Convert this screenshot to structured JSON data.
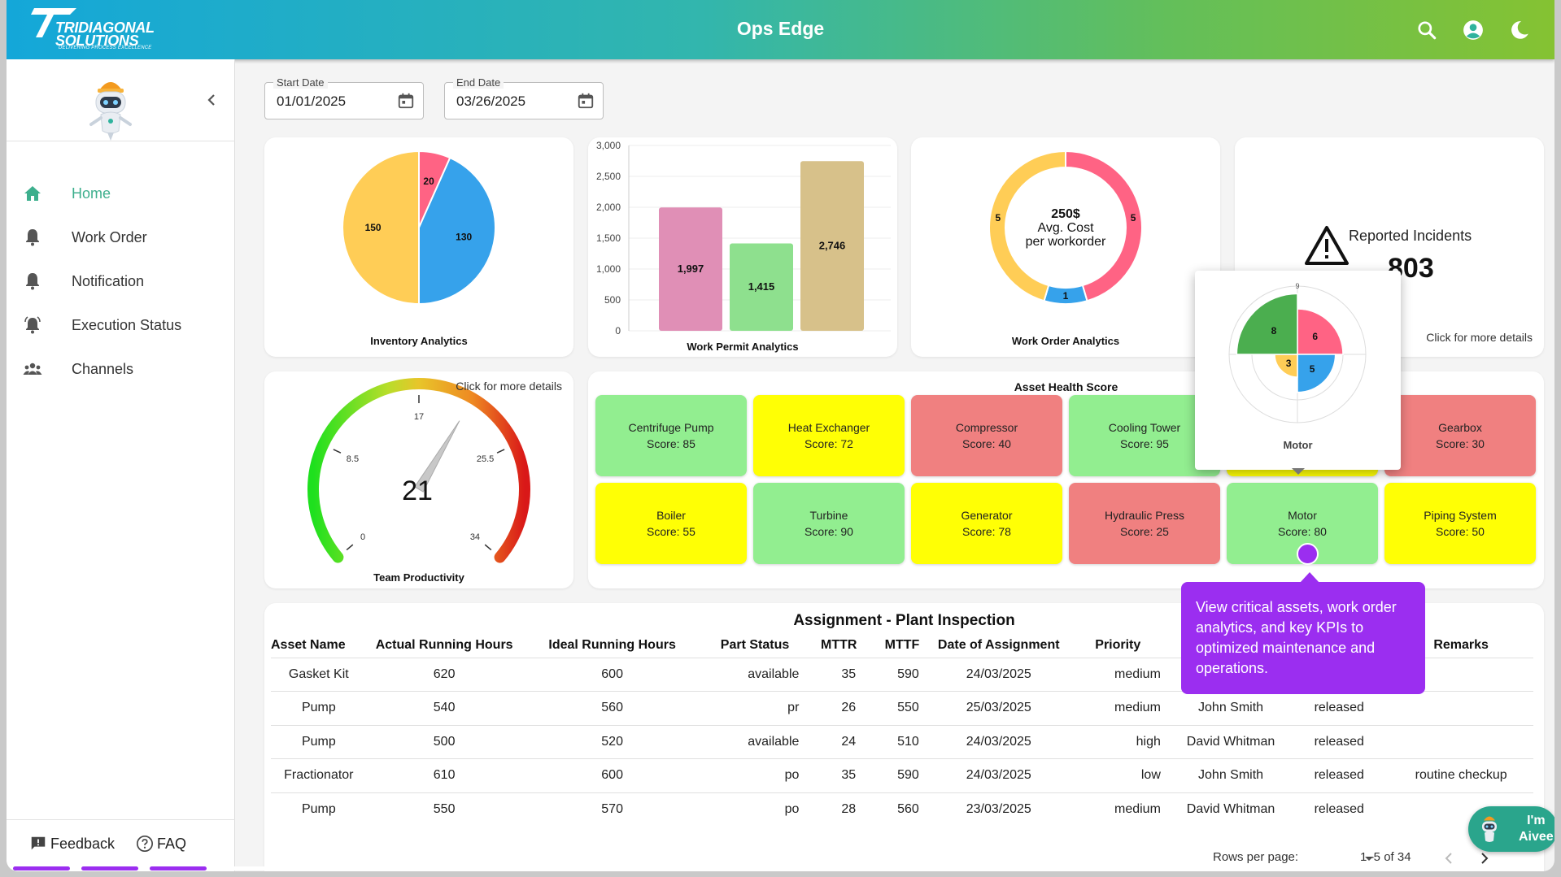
{
  "app": {
    "title": "Ops Edge",
    "brand_line1": "TRIDIAGONAL",
    "brand_line2": "SOLUTIONS",
    "brand_tagline": "DELIVERING PROCESS EXCELLENCE"
  },
  "header": {
    "icons": [
      "search-icon",
      "account-icon",
      "dark-mode-icon"
    ]
  },
  "sidebar": {
    "items": [
      {
        "label": "Home",
        "icon": "home-icon",
        "active": true
      },
      {
        "label": "Work Order",
        "icon": "bell-icon"
      },
      {
        "label": "Notification",
        "icon": "bell-icon"
      },
      {
        "label": "Execution Status",
        "icon": "alarm-bell-icon"
      },
      {
        "label": "Channels",
        "icon": "group-icon"
      }
    ],
    "feedback": "Feedback",
    "faq": "FAQ"
  },
  "filters": {
    "start": {
      "label": "Start Date",
      "value": "01/01/2025"
    },
    "separator": "-",
    "end": {
      "label": "End Date",
      "value": "03/26/2025"
    }
  },
  "colors": {
    "green": "#92ee90",
    "yellow": "#ffff05",
    "red": "#f08080",
    "accent": "#9b2ef0",
    "nav_active": "#3daf8d"
  },
  "chart_data": [
    {
      "type": "pie",
      "title": "Inventory Analytics",
      "slices": [
        {
          "value": 20,
          "color": "#ff6384"
        },
        {
          "value": 130,
          "color": "#36a2eb"
        },
        {
          "value": 150,
          "color": "#ffcd56"
        }
      ]
    },
    {
      "type": "bar",
      "title": "Work Permit Analytics",
      "ylim": [
        0,
        3000
      ],
      "yticks": [
        "0",
        "500",
        "1,000",
        "1,500",
        "2,000",
        "2,500",
        "3,000"
      ],
      "values": [
        1997,
        1415,
        2746
      ],
      "labels": [
        "1,997",
        "1,415",
        "2,746"
      ],
      "colors": [
        "#e08fb6",
        "#8ee08e",
        "#d7c18a"
      ]
    },
    {
      "type": "pie",
      "title": "Work Order Analytics",
      "center": {
        "line1": "250$",
        "line2": "Avg. Cost",
        "line3": "per workorder"
      },
      "slices": [
        {
          "value": 5,
          "color": "#ff6384"
        },
        {
          "value": 1,
          "color": "#36a2eb"
        },
        {
          "value": 5,
          "color": "#ffcd56"
        }
      ]
    },
    {
      "type": "gauge",
      "title": "Team Productivity",
      "value": 21,
      "min": 0,
      "max": 34,
      "ticks": [
        "0",
        "8.5",
        "17",
        "25.5",
        "34"
      ]
    },
    {
      "type": "pie",
      "title": "Motor",
      "kind": "polar-area",
      "max": 9,
      "slices": [
        {
          "value": 6,
          "color": "#ff6384"
        },
        {
          "value": 5,
          "color": "#36a2eb"
        },
        {
          "value": 3,
          "color": "#ffcd56"
        },
        {
          "value": 8,
          "color": "#4bae4f"
        }
      ],
      "axis_labels": [
        "9",
        "3"
      ]
    }
  ],
  "incidents": {
    "label": "Reported Incidents",
    "value": "803",
    "link": "Click for more details"
  },
  "productivity": {
    "link": "Click for more details"
  },
  "health": {
    "title": "Asset Health Score",
    "tiles": [
      {
        "name": "Centrifuge Pump",
        "score": "Score: 85",
        "level": "green"
      },
      {
        "name": "Heat Exchanger",
        "score": "Score: 72",
        "level": "yellow"
      },
      {
        "name": "Compressor",
        "score": "Score: 40",
        "level": "red"
      },
      {
        "name": "Cooling Tower",
        "score": "Score: 95",
        "level": "green"
      },
      {
        "name": "",
        "score": "",
        "level": "yellow"
      },
      {
        "name": "Gearbox",
        "score": "Score: 30",
        "level": "red"
      },
      {
        "name": "Boiler",
        "score": "Score: 55",
        "level": "yellow"
      },
      {
        "name": "Turbine",
        "score": "Score: 90",
        "level": "green"
      },
      {
        "name": "Generator",
        "score": "Score: 78",
        "level": "yellow"
      },
      {
        "name": "Hydraulic Press",
        "score": "Score: 25",
        "level": "red"
      },
      {
        "name": "Motor",
        "score": "Score: 80",
        "level": "green"
      },
      {
        "name": "Piping System",
        "score": "Score: 50",
        "level": "yellow"
      }
    ]
  },
  "table": {
    "title": "Assignment - Plant Inspection",
    "columns": [
      "Asset Name",
      "Actual Running Hours",
      "Ideal Running Hours",
      "Part Status",
      "MTTR",
      "MTTF",
      "Date of Assignment",
      "Priority",
      "",
      "",
      "Remarks"
    ],
    "rows": [
      [
        "Gasket Kit",
        "620",
        "600",
        "available",
        "35",
        "590",
        "24/03/2025",
        "medium",
        "",
        "",
        ""
      ],
      [
        "Pump",
        "540",
        "560",
        "pr",
        "26",
        "550",
        "25/03/2025",
        "medium",
        "John Smith",
        "released",
        ""
      ],
      [
        "Pump",
        "500",
        "520",
        "available",
        "24",
        "510",
        "24/03/2025",
        "high",
        "David Whitman",
        "released",
        ""
      ],
      [
        "Fractionator",
        "610",
        "600",
        "po",
        "35",
        "590",
        "24/03/2025",
        "low",
        "John Smith",
        "released",
        "routine checkup"
      ],
      [
        "Pump",
        "550",
        "570",
        "po",
        "28",
        "560",
        "23/03/2025",
        "medium",
        "David Whitman",
        "released",
        ""
      ]
    ],
    "rows_per_page_label": "Rows per page:",
    "range": "1–5 of 34"
  },
  "tooltip": {
    "text": "View critical assets, work order analytics, and key KPIs to optimized maintenance and operations."
  },
  "assistant": {
    "line1": "I'm",
    "line2": "Aivee"
  },
  "progress": {
    "steps_total": 12,
    "steps_done": 3
  }
}
